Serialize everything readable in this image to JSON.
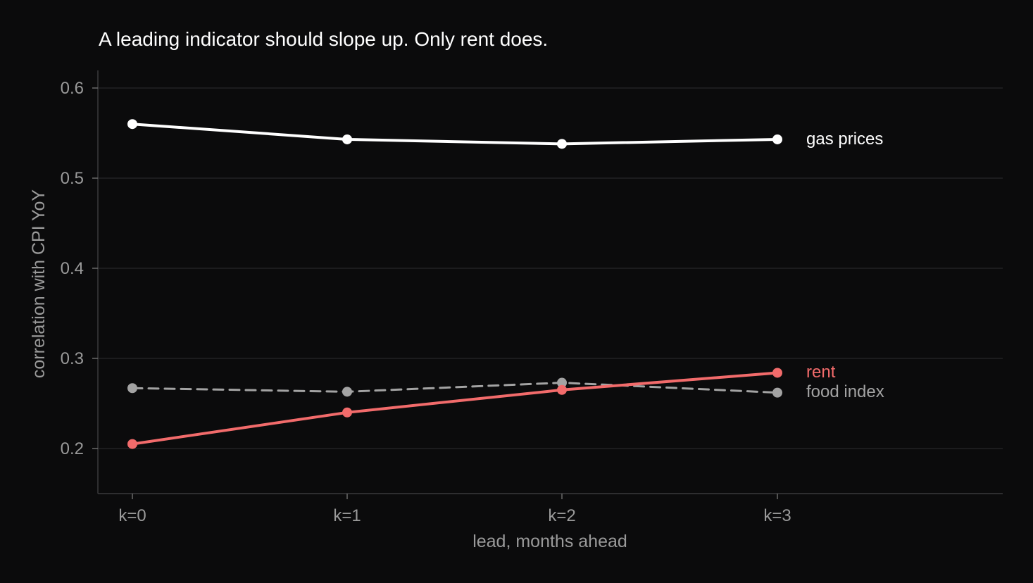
{
  "chart_data": {
    "type": "line",
    "title": "A leading indicator should slope up. Only rent does.",
    "xlabel": "lead, months ahead",
    "ylabel": "correlation with CPI YoY",
    "categories": [
      "k=0",
      "k=1",
      "k=2",
      "k=3"
    ],
    "yticks": [
      "0.2",
      "0.3",
      "0.4",
      "0.5",
      "0.6"
    ],
    "ylim": [
      0.15,
      0.62
    ],
    "grid": "horizontal",
    "legend": "direct labels at line ends",
    "series": [
      {
        "name": "gas prices",
        "values": [
          0.56,
          0.543,
          0.538,
          0.543
        ],
        "color": "#ffffff",
        "dash": "solid"
      },
      {
        "name": "rent",
        "values": [
          0.205,
          0.24,
          0.265,
          0.284
        ],
        "color": "#f26b6b",
        "dash": "solid"
      },
      {
        "name": "food index",
        "values": [
          0.267,
          0.263,
          0.273,
          0.262
        ],
        "color": "#a3a3a3",
        "dash": "dashed"
      }
    ]
  }
}
